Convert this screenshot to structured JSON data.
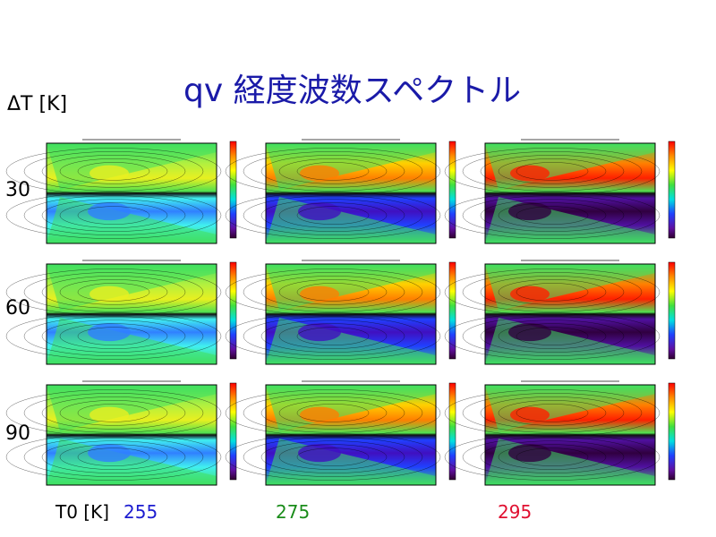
{
  "title": "qv 経度波数スペクトル",
  "row_axis_label": "ΔT [K]",
  "rows": [
    "30",
    "60",
    "90"
  ],
  "column_axis_label": "T0 [K]",
  "columns": [
    {
      "label": "255",
      "color": "#1c1cd0"
    },
    {
      "label": "275",
      "color": "#1a8c1a"
    },
    {
      "label": "295",
      "color": "#e01030"
    }
  ]
}
